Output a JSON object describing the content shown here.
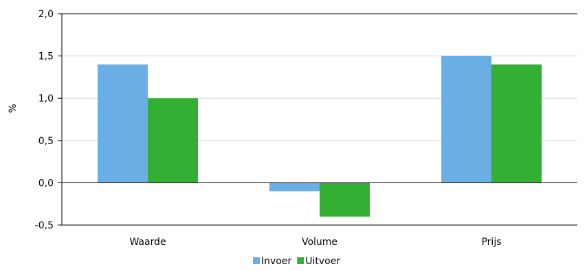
{
  "chart_data": {
    "type": "bar",
    "title": "",
    "xlabel": "",
    "ylabel": "%",
    "categories": [
      "Waarde",
      "Volume",
      "Prijs"
    ],
    "series": [
      {
        "name": "Invoer",
        "color": "#6aaee6",
        "values": [
          1.4,
          -0.1,
          1.5
        ]
      },
      {
        "name": "Uitvoer",
        "color": "#33b033",
        "values": [
          1.0,
          -0.4,
          1.4
        ]
      }
    ],
    "ylim": [
      -0.5,
      2.0
    ],
    "yticks": [
      {
        "value": -0.5,
        "label": "-0,5"
      },
      {
        "value": 0.0,
        "label": "0,0"
      },
      {
        "value": 0.5,
        "label": "0,5"
      },
      {
        "value": 1.0,
        "label": "1,0"
      },
      {
        "value": 1.5,
        "label": "1,5"
      },
      {
        "value": 2.0,
        "label": "2,0"
      }
    ],
    "grid": true,
    "legend_position": "bottom-center"
  }
}
